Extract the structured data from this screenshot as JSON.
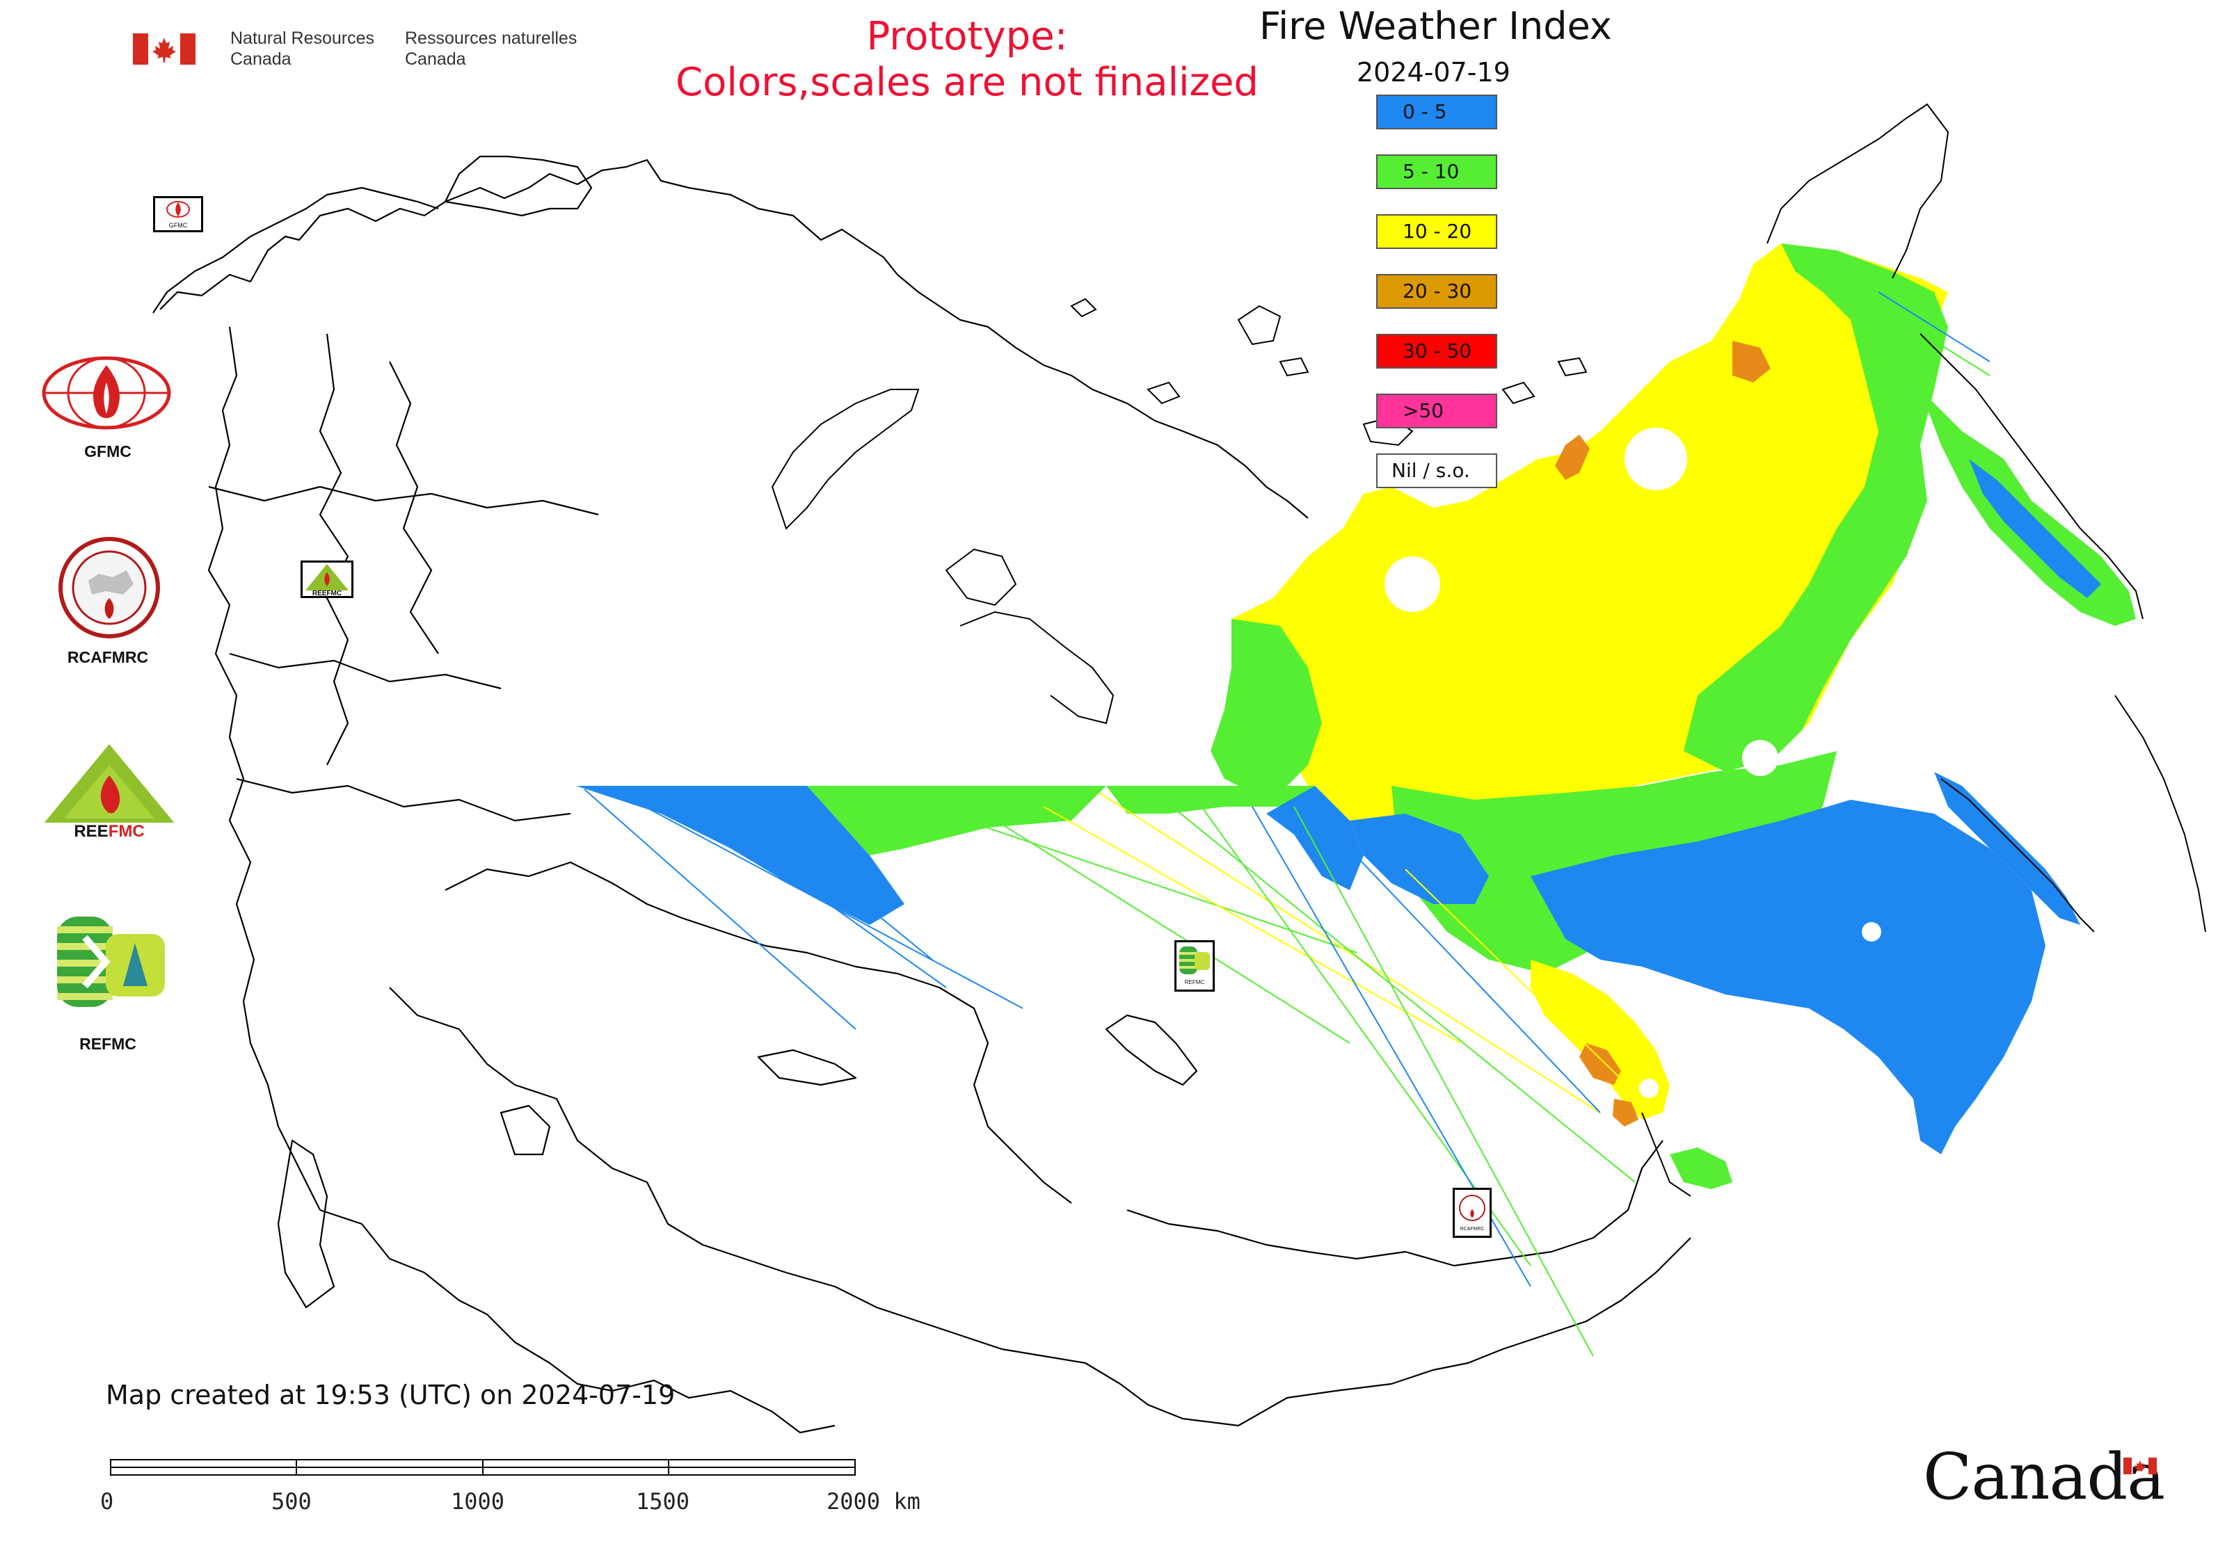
{
  "header": {
    "agency_en_line1": "Natural Resources",
    "agency_en_line2": "Canada",
    "agency_fr_line1": "Ressources naturelles",
    "agency_fr_line2": "Canada",
    "prototype_line1": "Prototype:",
    "prototype_line2": "Colors,scales are not finalized"
  },
  "map_title": "Fire Weather Index",
  "map_date": "2024-07-19",
  "legend": [
    {
      "label": "0 - 5",
      "color": "#1e88f0"
    },
    {
      "label": "5 - 10",
      "color": "#55ee33"
    },
    {
      "label": "10 - 20",
      "color": "#ffff00"
    },
    {
      "label": "20 - 30",
      "color": "#dd9900"
    },
    {
      "label": "30 - 50",
      "color": "#ff0000"
    },
    {
      "label": ">50",
      "color": "#ff3399"
    },
    {
      "label": "Nil / s.o.",
      "color": "#ffffff"
    }
  ],
  "organizations": [
    {
      "name": "GFMC"
    },
    {
      "name": "RCAFMRC"
    },
    {
      "name": "REEFMC"
    },
    {
      "name": "REFMC"
    }
  ],
  "map_logo_labels": {
    "gfmc": "GFMC",
    "reefmc": "REEFMC",
    "refmc": "REFMC",
    "rcafmrc": "RCAFMRC"
  },
  "footer": {
    "created": "Map created at 19:53 (UTC) on 2024-07-19",
    "scale_ticks": [
      "0",
      "500",
      "1000",
      "1500",
      "2000 km"
    ],
    "wordmark": "Canada"
  },
  "colors": {
    "prototype_text": "#ee1133",
    "flag_red": "#d52b1e",
    "boundary": "#000000"
  }
}
